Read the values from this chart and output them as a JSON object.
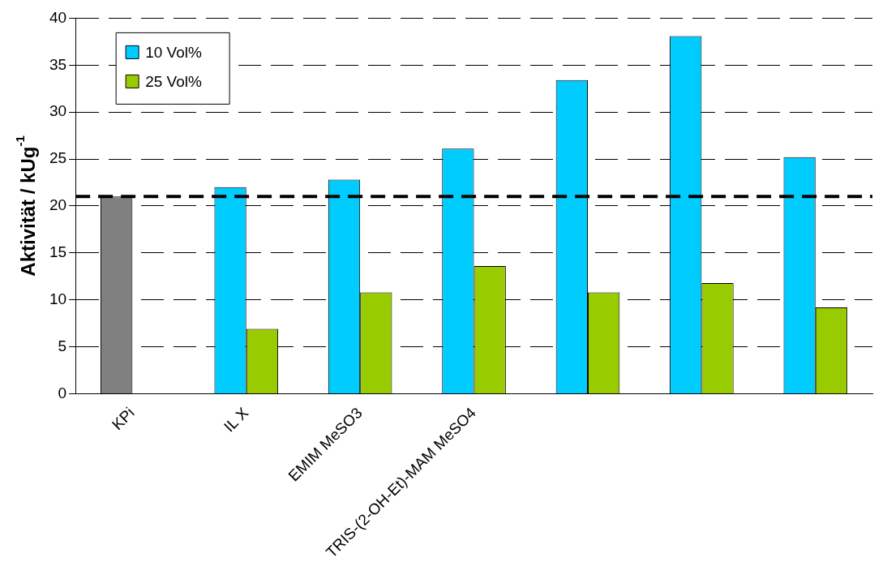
{
  "chart_data": {
    "type": "bar",
    "ylabel": "Aktivität / kUg$^{-1}$",
    "categories": [
      "KPi",
      "IL X",
      "EMIM MeSO3",
      "TRIS-(2-OH-Et)-MAM MeSO4",
      null,
      null,
      null
    ],
    "series": [
      {
        "name": "10 Vol%",
        "color": "#00ccff",
        "colors": [
          "#808080",
          "#00ccff",
          "#00ccff",
          "#00ccff",
          "#00ccff",
          "#00ccff",
          "#00ccff"
        ],
        "values": [
          21,
          22,
          22.8,
          26.1,
          33.4,
          38.1,
          25.2
        ]
      },
      {
        "name": "25 Vol%",
        "color": "#99cc00",
        "values": [
          null,
          6.9,
          10.8,
          13.6,
          10.8,
          11.8,
          9.2
        ]
      }
    ],
    "ylim": [
      0,
      40
    ],
    "yticks": [
      0,
      5,
      10,
      15,
      20,
      25,
      30,
      35,
      40
    ],
    "grid": "y",
    "legend": "top left",
    "ref_lines": [
      {
        "axis": "y",
        "value": 21,
        "color": "#000000",
        "line_style": "dashed"
      }
    ]
  }
}
